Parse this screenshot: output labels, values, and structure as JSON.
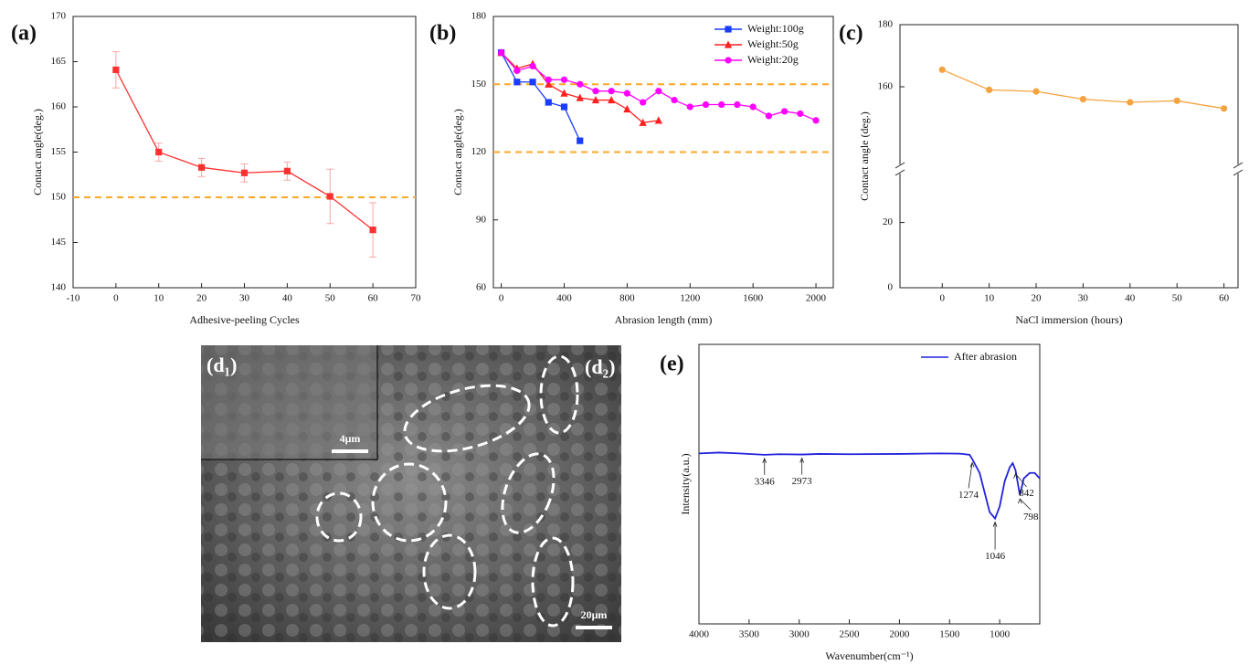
{
  "chart_data": [
    {
      "type": "line",
      "panel_label": "(a)",
      "x_label": "Adhesive-peeling Cycles",
      "y_label": "Contact angle(deg.)",
      "x": [
        0,
        10,
        20,
        30,
        40,
        50,
        60
      ],
      "series": [
        {
          "color": "#ff3030",
          "marker": "square",
          "values": [
            164.1,
            155.0,
            153.3,
            152.7,
            152.9,
            150.1,
            146.4
          ],
          "errors": [
            2,
            1,
            1,
            1,
            1,
            3,
            3
          ],
          "error_color": "#f7a6a6"
        }
      ],
      "xlim": [
        -10,
        70
      ],
      "xticks": [
        -10,
        0,
        10,
        20,
        30,
        40,
        50,
        60,
        70
      ],
      "ylim": [
        140,
        170
      ],
      "yticks": [
        140,
        145,
        150,
        155,
        160,
        165,
        170
      ],
      "reference_lines": [
        150
      ],
      "reference_color": "#ffa726"
    },
    {
      "type": "line",
      "panel_label": "(b)",
      "x_label": "Abrasion length (mm)",
      "y_label": "Contact angle(deg.)",
      "series": [
        {
          "name": "Weight:100g",
          "color": "#1a3cff",
          "marker": "square",
          "x": [
            0,
            100,
            200,
            300,
            400,
            500
          ],
          "values": [
            164,
            151,
            151,
            142,
            140,
            125
          ]
        },
        {
          "name": "Weight:50g",
          "color": "#ff2020",
          "marker": "triangle",
          "x": [
            0,
            100,
            200,
            300,
            400,
            500,
            600,
            700,
            800,
            900,
            1000
          ],
          "values": [
            164,
            157,
            159,
            150,
            146,
            144,
            143,
            143,
            139,
            133,
            134
          ]
        },
        {
          "name": "Weight:20g",
          "color": "#ff00ff",
          "marker": "circle",
          "x": [
            0,
            100,
            200,
            300,
            400,
            500,
            600,
            700,
            800,
            900,
            1000,
            1100,
            1200,
            1300,
            1400,
            1500,
            1600,
            1700,
            1800,
            1900,
            2000
          ],
          "values": [
            164,
            156,
            158,
            152,
            152,
            150,
            147,
            147,
            146,
            142,
            147,
            143,
            140,
            141,
            141,
            141,
            140,
            136,
            138,
            137,
            134
          ]
        }
      ],
      "xlim": [
        -50,
        2110
      ],
      "xticks": [
        0,
        400,
        800,
        1200,
        1600,
        2000
      ],
      "ylim": [
        60,
        180
      ],
      "yticks": [
        60,
        90,
        120,
        150,
        180
      ],
      "reference_lines": [
        120,
        150
      ],
      "reference_color": "#ffa726",
      "legend": "top-right"
    },
    {
      "type": "line",
      "panel_label": "(c)",
      "x_label": "NaCl immersion (hours)",
      "y_label": "Contact angle (deg.)",
      "x": [
        0,
        10,
        20,
        30,
        40,
        50,
        60
      ],
      "series": [
        {
          "color": "#f4a340",
          "marker": "circle",
          "values": [
            165.5,
            159,
            158.5,
            156,
            155,
            155.5,
            153
          ]
        }
      ],
      "xlim": [
        -9,
        63
      ],
      "xticks": [
        0,
        10,
        20,
        30,
        40,
        50,
        60
      ],
      "ylim": [
        0,
        180
      ],
      "axis_break": [
        35,
        135
      ],
      "yticks": [
        0,
        20,
        160,
        180
      ]
    },
    {
      "type": "line",
      "panel_label": "(e)",
      "x_label": "Wavenumber(cm⁻¹)",
      "y_label": "Intensity(a.u.)",
      "series": [
        {
          "name": "After abrasion",
          "color": "#2222dd",
          "x": [
            4000,
            3800,
            3600,
            3346,
            3200,
            2973,
            2800,
            2500,
            2000,
            1600,
            1400,
            1300,
            1274,
            1200,
            1150,
            1100,
            1046,
            1000,
            950,
            900,
            870,
            842,
            798,
            760,
            700,
            650,
            600
          ],
          "values": [
            61,
            61.3,
            61,
            60.5,
            60.7,
            60.6,
            60.8,
            60.7,
            60.8,
            61,
            60.9,
            60.5,
            59,
            54,
            47,
            40,
            37.7,
            42,
            51,
            56,
            57.5,
            55,
            46,
            52,
            54,
            54,
            52
          ]
        }
      ],
      "xlim": [
        4000,
        600
      ],
      "xticks": [
        4000,
        3500,
        3000,
        2500,
        2000,
        1500,
        1000
      ],
      "ylim": [
        0,
        100
      ],
      "legend": "top-right",
      "annotations": [
        {
          "text": "3346",
          "x": 3346
        },
        {
          "text": "2973",
          "x": 2973
        },
        {
          "text": "1274",
          "x": 1274
        },
        {
          "text": "1046",
          "x": 1046
        },
        {
          "text": "842",
          "x": 842
        },
        {
          "text": "798",
          "x": 798
        }
      ]
    }
  ],
  "image_panel": {
    "inset_label": "(d₁)",
    "main_label": "(d₂)",
    "inset_scale": "4μm",
    "main_scale": "20μm"
  }
}
